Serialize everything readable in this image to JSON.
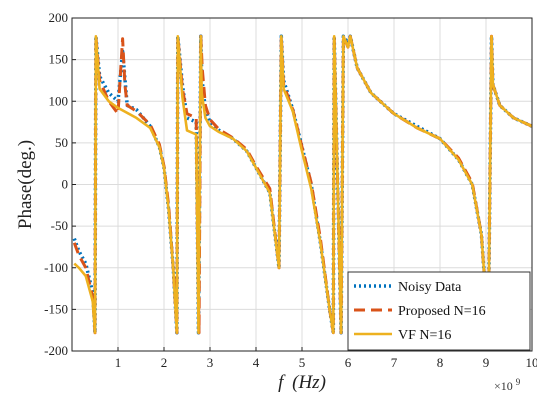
{
  "chart_data": {
    "type": "line",
    "ylabel": "Phase(deg.)",
    "xlabel_italic": "f",
    "xlabel_unit": "(Hz)",
    "x_multiplier": "×10",
    "x_multiplier_exp": "9",
    "xlim": [
      0,
      10
    ],
    "ylim": [
      -200,
      200
    ],
    "grid": true,
    "legend_position": "bottom-right",
    "x_ticks": [
      1,
      2,
      3,
      4,
      5,
      6,
      7,
      8,
      9,
      10
    ],
    "y_ticks": [
      -200,
      -150,
      -100,
      -50,
      0,
      50,
      100,
      150,
      200
    ],
    "series": [
      {
        "name": "Noisy Data",
        "style": "dotted",
        "color": "#0072BD",
        "x": [
          0.05,
          0.15,
          0.3,
          0.45,
          0.5,
          0.52,
          0.6,
          0.8,
          1.0,
          1.1,
          1.2,
          1.4,
          1.7,
          1.9,
          2.0,
          2.1,
          2.2,
          2.28,
          2.3,
          2.4,
          2.5,
          2.7,
          2.72,
          2.75,
          2.8,
          2.82,
          2.9,
          3.0,
          3.2,
          3.5,
          3.8,
          4.0,
          4.3,
          4.5,
          4.55,
          4.6,
          4.8,
          5.0,
          5.2,
          5.4,
          5.6,
          5.68,
          5.7,
          5.85,
          5.9,
          6.0,
          6.05,
          6.2,
          6.5,
          7.0,
          7.5,
          8.0,
          8.4,
          8.7,
          8.9,
          9.05,
          9.12,
          9.15,
          9.3,
          9.6,
          10.0
        ],
        "y": [
          -65,
          -80,
          -95,
          -130,
          -178,
          178,
          130,
          110,
          100,
          160,
          95,
          90,
          70,
          45,
          20,
          -30,
          -100,
          -178,
          178,
          120,
          80,
          75,
          -20,
          -178,
          178,
          130,
          90,
          75,
          65,
          55,
          40,
          20,
          -10,
          -100,
          178,
          125,
          90,
          45,
          0,
          -70,
          -150,
          -178,
          178,
          -178,
          178,
          170,
          178,
          140,
          110,
          85,
          70,
          55,
          30,
          0,
          -60,
          -178,
          178,
          120,
          95,
          80,
          70
        ]
      },
      {
        "name": "Proposed N=16",
        "style": "dashed",
        "color": "#D95319",
        "x": [
          0.05,
          0.15,
          0.3,
          0.45,
          0.5,
          0.52,
          0.6,
          0.8,
          1.0,
          1.1,
          1.15,
          1.2,
          1.4,
          1.7,
          1.9,
          2.0,
          2.1,
          2.2,
          2.28,
          2.3,
          2.4,
          2.5,
          2.7,
          2.72,
          2.76,
          2.8,
          2.83,
          2.9,
          3.0,
          3.2,
          3.5,
          3.8,
          4.0,
          4.3,
          4.5,
          4.55,
          4.6,
          4.8,
          5.0,
          5.2,
          5.4,
          5.6,
          5.68,
          5.7,
          5.85,
          5.9,
          6.0,
          6.05,
          6.2,
          6.5,
          7.0,
          7.5,
          8.0,
          8.4,
          8.7,
          8.9,
          9.05,
          9.12,
          9.15,
          9.3,
          9.6,
          10.0
        ],
        "y": [
          -70,
          -85,
          -100,
          -135,
          -178,
          178,
          125,
          100,
          85,
          175,
          120,
          95,
          88,
          72,
          48,
          22,
          -25,
          -100,
          -178,
          178,
          115,
          85,
          80,
          -30,
          -178,
          178,
          140,
          95,
          78,
          66,
          56,
          42,
          22,
          -5,
          -100,
          178,
          120,
          90,
          45,
          2,
          -65,
          -150,
          -178,
          178,
          -178,
          178,
          165,
          178,
          140,
          110,
          85,
          68,
          55,
          32,
          2,
          -60,
          -178,
          178,
          120,
          95,
          80,
          70
        ]
      },
      {
        "name": "VF N=16",
        "style": "solid",
        "color": "#EDB120",
        "x": [
          0.05,
          0.15,
          0.3,
          0.45,
          0.5,
          0.52,
          0.6,
          0.8,
          1.0,
          1.2,
          1.4,
          1.7,
          1.9,
          2.0,
          2.1,
          2.2,
          2.28,
          2.3,
          2.4,
          2.5,
          2.7,
          2.72,
          2.75,
          2.8,
          2.82,
          2.9,
          3.0,
          3.2,
          3.5,
          3.8,
          4.0,
          4.3,
          4.5,
          4.55,
          4.6,
          4.8,
          5.0,
          5.2,
          5.4,
          5.6,
          5.68,
          5.7,
          5.85,
          5.9,
          6.0,
          6.05,
          6.2,
          6.5,
          7.0,
          7.5,
          8.0,
          8.4,
          8.7,
          8.9,
          9.05,
          9.12,
          9.15,
          9.3,
          9.6,
          10.0
        ],
        "y": [
          -95,
          -100,
          -110,
          -140,
          -178,
          178,
          115,
          100,
          92,
          86,
          80,
          68,
          45,
          20,
          -30,
          -100,
          -178,
          178,
          105,
          65,
          60,
          -30,
          -178,
          178,
          110,
          80,
          70,
          63,
          55,
          40,
          20,
          -10,
          -100,
          178,
          115,
          88,
          40,
          -5,
          -70,
          -150,
          -178,
          178,
          -178,
          178,
          165,
          178,
          140,
          110,
          85,
          68,
          55,
          30,
          0,
          -60,
          -178,
          178,
          120,
          95,
          80,
          70
        ]
      }
    ]
  }
}
